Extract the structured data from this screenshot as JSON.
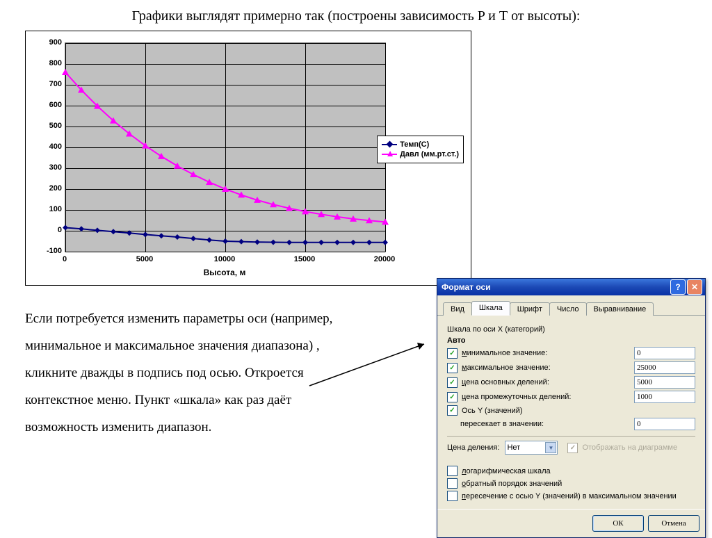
{
  "title": "Графики выглядят примерно так (построены зависимость P и Т от высоты):",
  "body_text": "Если потребуется изменить параметры оси (например, минимальное и максимальное значения диапазона) , кликните дважды в подпись под осью. Откроется контекстное меню. Пункт «шкала» как раз даёт возможность изменить диапазон.",
  "chart": {
    "type": "line",
    "x_label": "Высота, м",
    "xlim": [
      0,
      20000
    ],
    "ylim": [
      -100,
      900
    ],
    "xtick_step": 5000,
    "ytick_step": 100,
    "x_ticks": [
      "0",
      "5000",
      "10000",
      "15000",
      "20000"
    ],
    "y_ticks": [
      "-100",
      "0",
      "100",
      "200",
      "300",
      "400",
      "500",
      "600",
      "700",
      "800",
      "900"
    ],
    "plot_bg": "#c0c0c0",
    "grid_color": "#000000",
    "series": [
      {
        "name": "Темп(С)",
        "color": "#000080",
        "marker": "diamond",
        "x": [
          0,
          1000,
          2000,
          3000,
          4000,
          5000,
          6000,
          7000,
          8000,
          9000,
          10000,
          11000,
          12000,
          13000,
          14000,
          15000,
          16000,
          17000,
          18000,
          19000,
          20000
        ],
        "y": [
          15,
          9,
          2,
          -4,
          -11,
          -18,
          -24,
          -30,
          -37,
          -44,
          -50,
          -52,
          -54,
          -55,
          -56,
          -56,
          -56,
          -56,
          -56,
          -56,
          -56
        ]
      },
      {
        "name": "Давл (мм.рт.ст.)",
        "color": "#ff00ff",
        "marker": "triangle",
        "x": [
          0,
          1000,
          2000,
          3000,
          4000,
          5000,
          6000,
          7000,
          8000,
          9000,
          10000,
          11000,
          12000,
          13000,
          14000,
          15000,
          16000,
          17000,
          18000,
          19000,
          20000
        ],
        "y": [
          760,
          675,
          598,
          528,
          465,
          408,
          357,
          311,
          270,
          233,
          200,
          172,
          147,
          126,
          108,
          92,
          79,
          67,
          57,
          49,
          42
        ]
      }
    ]
  },
  "dialog": {
    "title": "Формат оси",
    "tabs": [
      "Вид",
      "Шкала",
      "Шрифт",
      "Число",
      "Выравнивание"
    ],
    "active_tab": "Шкала",
    "section": "Шкала по оси X (категорий)",
    "auto_label": "Авто",
    "rows": [
      {
        "label": "минимальное значение:",
        "value": "0",
        "checked": true
      },
      {
        "label": "максимальное значение:",
        "value": "25000",
        "checked": true
      },
      {
        "label": "цена основных делений:",
        "value": "5000",
        "checked": true
      },
      {
        "label": "цена промежуточных делений:",
        "value": "1000",
        "checked": true
      }
    ],
    "axis_y_label": "Ось Y (значений)",
    "axis_y_sub": "пересекает в значении:",
    "axis_y_value": "0",
    "price_div_label": "Цена деления:",
    "price_div_value": "Нет",
    "show_on_diagram": "Отображать на диаграмме",
    "opts": [
      "логарифмическая шкала",
      "обратный порядок значений",
      "пересечение с осью Y (значений) в максимальном значении"
    ],
    "ok": "ОК",
    "cancel": "Отмена"
  }
}
